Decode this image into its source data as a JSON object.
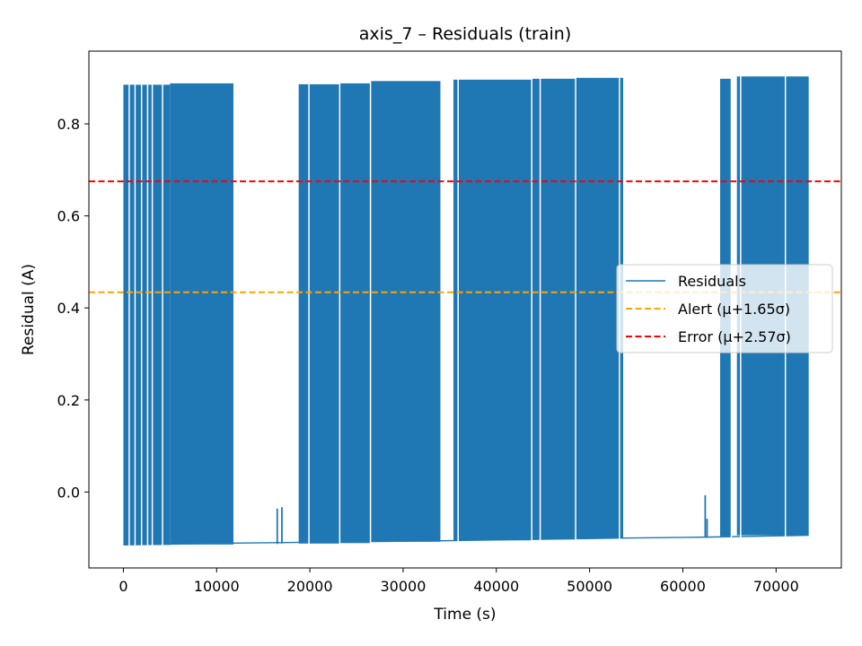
{
  "chart_data": {
    "type": "line",
    "title": "axis_7 – Residuals (train)",
    "xlabel": "Time (s)",
    "ylabel": "Residual (A)",
    "xlim": [
      -3700,
      77000
    ],
    "ylim": [
      -0.165,
      0.958
    ],
    "grid": false,
    "legend_position": "center-right",
    "x_ticks": [
      0,
      10000,
      20000,
      30000,
      40000,
      50000,
      60000,
      70000
    ],
    "x_tick_labels": [
      "0",
      "10000",
      "20000",
      "30000",
      "40000",
      "50000",
      "60000",
      "70000"
    ],
    "y_ticks": [
      0.0,
      0.2,
      0.4,
      0.6,
      0.8
    ],
    "y_tick_labels": [
      "0.0",
      "0.2",
      "0.4",
      "0.6",
      "0.8"
    ],
    "series": [
      {
        "name": "Residuals",
        "color": "#1f77b4",
        "style": "solid",
        "oscillation_blocks": [
          {
            "x": [
              0,
              5000
            ],
            "low": -0.115,
            "high": 0.885
          },
          {
            "x": [
              5000,
              11800
            ],
            "low": -0.114,
            "high": 0.888
          },
          {
            "x": [
              18800,
              23200
            ],
            "low": -0.112,
            "high": 0.886
          },
          {
            "x": [
              23200,
              26500
            ],
            "low": -0.111,
            "high": 0.888
          },
          {
            "x": [
              26500,
              34000
            ],
            "low": -0.108,
            "high": 0.893
          },
          {
            "x": [
              35400,
              43800
            ],
            "low": -0.105,
            "high": 0.896
          },
          {
            "x": [
              43800,
              48500
            ],
            "low": -0.103,
            "high": 0.898
          },
          {
            "x": [
              48500,
              53600
            ],
            "low": -0.101,
            "high": 0.9
          },
          {
            "x": [
              64000,
              65200
            ],
            "low": -0.096,
            "high": 0.898
          },
          {
            "x": [
              65800,
              73500
            ],
            "low": -0.094,
            "high": 0.903
          }
        ],
        "blank_vertical_lines": [
          625,
          1250,
          1950,
          2600,
          3100,
          4200,
          19900,
          23200,
          26500,
          35900,
          43800,
          44700,
          48500,
          53200,
          65200,
          66200,
          71000
        ],
        "baseline": [
          [
            0,
            -0.115
          ],
          [
            12000,
            -0.111
          ],
          [
            34000,
            -0.106
          ],
          [
            53600,
            -0.1
          ],
          [
            62600,
            -0.098
          ],
          [
            73500,
            -0.094
          ]
        ],
        "isolated_spikes": [
          {
            "x": 16500,
            "low": -0.113,
            "high": -0.036
          },
          {
            "x": 17000,
            "low": -0.112,
            "high": -0.033
          },
          {
            "x": 62400,
            "low": -0.099,
            "high": -0.007
          },
          {
            "x": 62600,
            "low": -0.098,
            "high": -0.058
          }
        ]
      },
      {
        "name": "Alert (μ+1.65σ)",
        "color": "#ffa500",
        "style": "dashed",
        "y": 0.434
      },
      {
        "name": "Error (μ+2.57σ)",
        "color": "#ff0000",
        "style": "dashed",
        "y": 0.675
      }
    ]
  }
}
